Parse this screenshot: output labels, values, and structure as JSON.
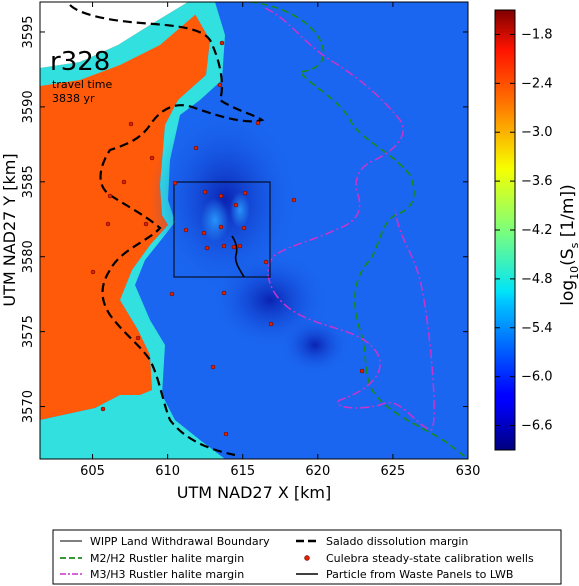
{
  "map": {
    "run_label": "r328",
    "travel_time_label": "travel time",
    "travel_time_value": "3838 yr",
    "x_axis_label": "UTM NAD27 X [km]",
    "y_axis_label": "UTM NAD27 Y [km]",
    "x_ticks": [
      "605",
      "610",
      "615",
      "620",
      "625",
      "630"
    ],
    "x_tick_values": [
      605,
      610,
      615,
      620,
      625,
      630
    ],
    "y_ticks": [
      "3570",
      "3575",
      "3580",
      "3585",
      "3590",
      "3595"
    ],
    "y_tick_values": [
      3570,
      3575,
      3580,
      3585,
      3590,
      3595
    ],
    "x_range": [
      601.5,
      630.0
    ],
    "y_range": [
      3566.5,
      3597.0
    ]
  },
  "colorbar": {
    "label_log": "log",
    "label_sub": "10",
    "label_rest": "(S",
    "label_s_sub": "s",
    "label_units": " [1/m])",
    "ticks": [
      "−1.8",
      "−2.4",
      "−3.0",
      "−3.6",
      "−4.2",
      "−4.8",
      "−5.4",
      "−6.0",
      "−6.6"
    ],
    "tick_values": [
      -1.8,
      -2.4,
      -3.0,
      -3.6,
      -4.2,
      -4.8,
      -5.4,
      -6.0,
      -6.6
    ],
    "range": [
      -6.9,
      -1.5
    ],
    "colormap": "jet"
  },
  "legend": {
    "items": [
      {
        "label": "WIPP Land Withdrawal Boundary",
        "style": "thin-solid",
        "color": "#000000"
      },
      {
        "label": "Salado dissolution margin",
        "style": "thick-dashed",
        "color": "#000000"
      },
      {
        "label": "M2/H2 Rustler halite margin",
        "style": "dashed",
        "color": "#1a8a1a"
      },
      {
        "label": "Culebra steady-state calibration wells",
        "style": "dot",
        "color": "#dd2200"
      },
      {
        "label": "M3/H3 Rustler halite margin",
        "style": "dash-dot",
        "color": "#cc33cc"
      },
      {
        "label": "Particle from Waste Panels to LWB",
        "style": "solid",
        "color": "#000000"
      }
    ]
  },
  "colors": {
    "background_field": "#1a66f0",
    "low_region": "#1233c8",
    "cyan_region": "#33e0e0",
    "orange_region": "#ff5a0a",
    "well_marker": "#dd2200",
    "m2_margin": "#1a8a1a",
    "m3_margin": "#cc33cc"
  }
}
